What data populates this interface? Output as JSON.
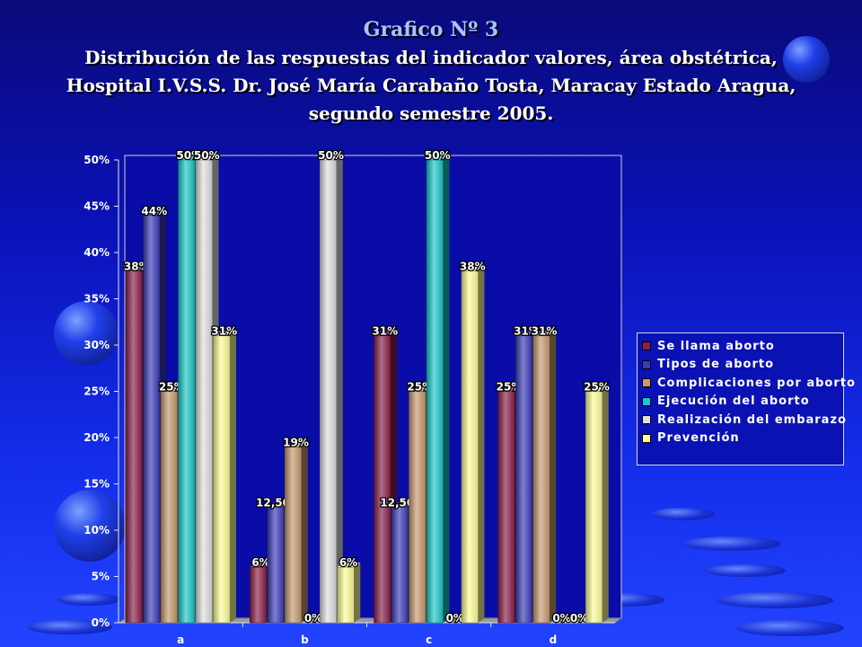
{
  "title": {
    "line1": "Grafico Nº 3",
    "line2": "Distribución de las respuestas del indicador valores, área obstétrica,",
    "line3": "Hospital I.V.S.S. Dr. José María Carabaño Tosta, Maracay Estado Aragua,",
    "line4": "segundo semestre 2005."
  },
  "chart_data": {
    "type": "bar",
    "categories": [
      "a",
      "b",
      "c",
      "d"
    ],
    "ylim": [
      0,
      50
    ],
    "yticks": [
      "0%",
      "5%",
      "10%",
      "15%",
      "20%",
      "25%",
      "30%",
      "35%",
      "40%",
      "45%",
      "50%"
    ],
    "legend_position": "right",
    "series": [
      {
        "name": "Se llama aborto",
        "values": [
          38,
          6,
          31,
          25
        ],
        "labels": [
          "38%",
          "6%",
          "31%",
          "25%"
        ],
        "color": "#8a1f48"
      },
      {
        "name": "Tipos de aborto",
        "values": [
          44,
          12.5,
          12.5,
          31
        ],
        "labels": [
          "44%",
          "12,50%",
          "12,50%",
          "31%"
        ],
        "color": "#3a3ab8"
      },
      {
        "name": "Complicaciones por aborto",
        "values": [
          25,
          19,
          25,
          31
        ],
        "labels": [
          "25%",
          "19%",
          "25%",
          "31%"
        ],
        "color": "#c89a6e"
      },
      {
        "name": "Ejecución del aborto",
        "values": [
          50,
          0,
          50,
          0
        ],
        "labels": [
          "50%",
          "0%",
          "50%",
          "0%"
        ],
        "color": "#19c8c8"
      },
      {
        "name": "Realización del embarazo",
        "values": [
          50,
          50,
          0,
          0
        ],
        "labels": [
          "50%",
          "50%",
          "0%",
          "0%"
        ],
        "color": "#e0e0e0"
      },
      {
        "name": "Prevención",
        "values": [
          31,
          6,
          38,
          25
        ],
        "labels": [
          "31%",
          "6%",
          "38%",
          "25%"
        ],
        "color": "#ffff99"
      }
    ]
  }
}
